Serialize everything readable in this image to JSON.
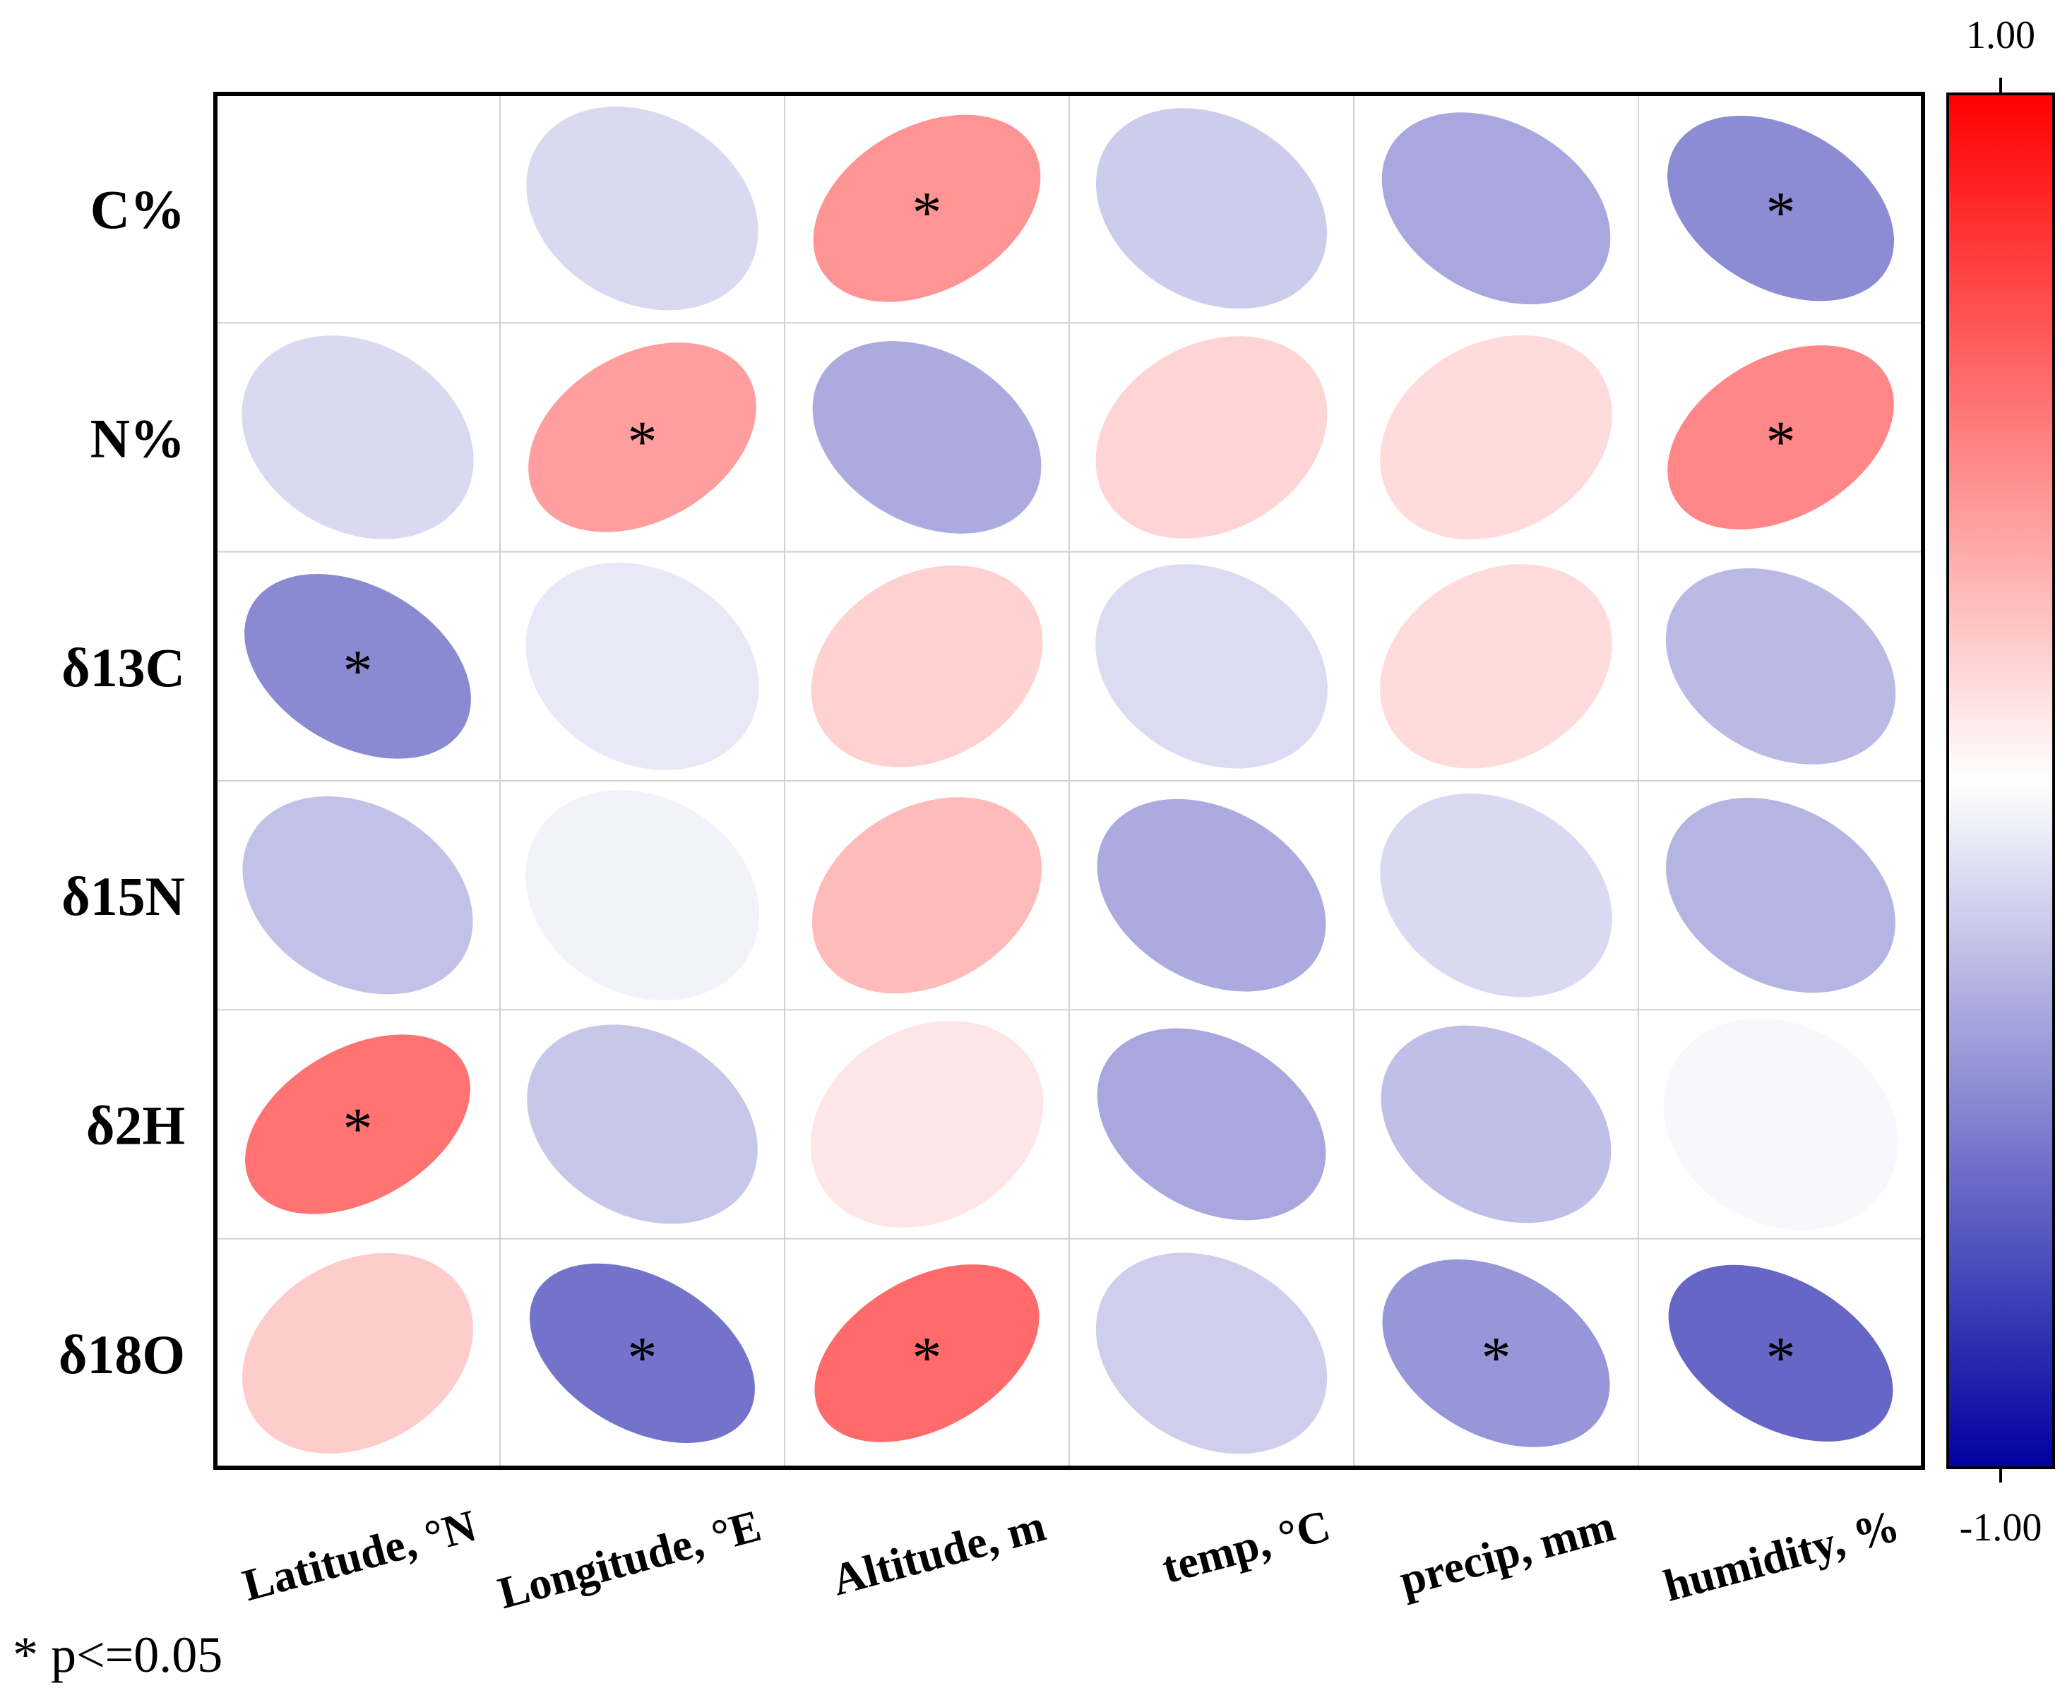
{
  "chart_data": {
    "type": "heatmap",
    "style": "ellipse correlation matrix",
    "rows": [
      "C%",
      "N%",
      "δ13C",
      "δ15N",
      "δ2H",
      "δ18O"
    ],
    "columns": [
      "Latitude, °N",
      "Longitude, °E",
      "Altitude, m",
      "temp, °C",
      "precip, mm",
      "humidity, %"
    ],
    "values": [
      [
        null,
        -0.15,
        0.42,
        -0.2,
        -0.34,
        -0.45
      ],
      [
        -0.15,
        0.38,
        -0.33,
        0.17,
        0.14,
        0.47
      ],
      [
        -0.46,
        -0.09,
        0.18,
        -0.14,
        0.14,
        -0.27
      ],
      [
        -0.24,
        -0.05,
        0.27,
        -0.33,
        -0.15,
        -0.29
      ],
      [
        0.55,
        -0.22,
        0.1,
        -0.34,
        -0.25,
        -0.03
      ],
      [
        0.2,
        -0.55,
        0.58,
        -0.19,
        -0.41,
        -0.6
      ]
    ],
    "significant": [
      [
        false,
        false,
        true,
        false,
        false,
        true
      ],
      [
        false,
        true,
        false,
        false,
        false,
        true
      ],
      [
        true,
        false,
        false,
        false,
        false,
        false
      ],
      [
        false,
        false,
        false,
        false,
        false,
        false
      ],
      [
        true,
        false,
        false,
        false,
        false,
        false
      ],
      [
        false,
        true,
        true,
        false,
        true,
        true
      ]
    ],
    "significance_marker": "*",
    "colorbar": {
      "max_label": "1.00",
      "min_label": "-1.00",
      "range": [
        -1,
        1
      ],
      "colors": {
        "low": "#0000a0",
        "mid": "#ffffff",
        "high": "#ff0000"
      }
    },
    "note": "* p<=0.05"
  }
}
